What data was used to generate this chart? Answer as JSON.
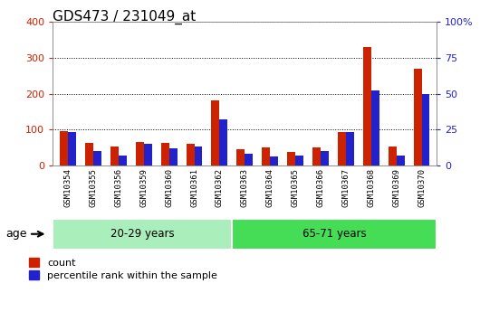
{
  "title": "GDS473 / 231049_at",
  "samples": [
    "GSM10354",
    "GSM10355",
    "GSM10356",
    "GSM10359",
    "GSM10360",
    "GSM10361",
    "GSM10362",
    "GSM10363",
    "GSM10364",
    "GSM10365",
    "GSM10366",
    "GSM10367",
    "GSM10368",
    "GSM10369",
    "GSM10370"
  ],
  "count": [
    95,
    62,
    52,
    65,
    62,
    60,
    180,
    45,
    50,
    38,
    50,
    93,
    330,
    52,
    270
  ],
  "percentile": [
    23,
    10,
    7,
    15,
    12,
    13,
    32,
    8,
    6,
    7,
    10,
    23,
    52,
    7,
    50
  ],
  "count_color": "#cc2200",
  "percentile_color": "#2222cc",
  "bar_width": 0.32,
  "ylim_left": [
    0,
    400
  ],
  "ylim_right": [
    0,
    100
  ],
  "yticks_left": [
    0,
    100,
    200,
    300,
    400
  ],
  "yticks_right": [
    0,
    25,
    50,
    75,
    100
  ],
  "ytick_labels_right": [
    "0",
    "25",
    "50",
    "75",
    "100%"
  ],
  "groups": [
    {
      "label": "20-29 years",
      "start": 0,
      "end": 7,
      "color": "#aaeebb"
    },
    {
      "label": "65-71 years",
      "start": 7,
      "end": 15,
      "color": "#44dd55"
    }
  ],
  "age_label": "age",
  "legend_count": "count",
  "legend_percentile": "percentile rank within the sample",
  "grid_color": "#000000",
  "bg_color": "#ffffff",
  "tick_bg": "#cccccc",
  "title_fontsize": 11
}
